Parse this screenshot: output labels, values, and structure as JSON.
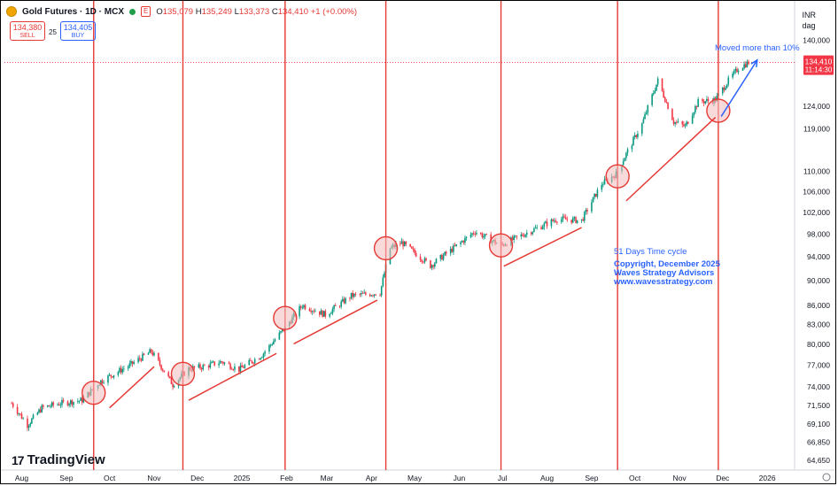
{
  "header": {
    "symbol": "Gold Futures · 1D · MCX",
    "badge": "E",
    "ohlc": {
      "o_label": "O",
      "o": "135,079",
      "h_label": "H",
      "h": "135,249",
      "l_label": "L",
      "l": "133,373",
      "c_label": "C",
      "c": "134,410",
      "change": "+1 (+0.00%)"
    },
    "sell": {
      "price": "134,380",
      "label": "SELL"
    },
    "buy": {
      "price": "134,405",
      "label": "BUY"
    },
    "spread": "25",
    "currency": "INR",
    "unit": "dag"
  },
  "branding": {
    "logo_text": "TradingView"
  },
  "annotations": {
    "moved": "Moved more than 10%",
    "cycle": "51 Days Time cycle",
    "copyright": "Copyright, December 2025",
    "company": "Waves Strategy Advisors",
    "website": "www.wavesstrategy.com"
  },
  "colors": {
    "up": "#089981",
    "down": "#f23645",
    "cycle_line": "#e53935",
    "arrow": "#2962ff",
    "circle_fill": "#f4bcbc"
  },
  "chart_data": {
    "type": "candlestick",
    "ylim": [
      63500,
      141500
    ],
    "y_scale": "log",
    "y_ticks": [
      "140,000",
      "124,000",
      "119,000",
      "110,000",
      "106,000",
      "102,000",
      "98,000",
      "94,000",
      "90,000",
      "86,000",
      "83,000",
      "80,000",
      "77,000",
      "74,000",
      "71,500",
      "69,100",
      "66,850",
      "64,650"
    ],
    "x_ticks": [
      "Aug",
      "Sep",
      "Oct",
      "Nov",
      "Dec",
      "2025",
      "Feb",
      "Mar",
      "Apr",
      "May",
      "Jun",
      "Jul",
      "Aug",
      "Sep",
      "Oct",
      "Nov",
      "Dec",
      "2026"
    ],
    "x_range": [
      "2024-07-20",
      "2026-01-20"
    ],
    "last_price": "134,410",
    "countdown": "11:14:30",
    "price_trend": [
      [
        "2024-07-25",
        71800
      ],
      [
        "2024-08-05",
        69000
      ],
      [
        "2024-08-15",
        71200
      ],
      [
        "2024-08-28",
        71800
      ],
      [
        "2024-09-12",
        72200
      ],
      [
        "2024-09-25",
        74800
      ],
      [
        "2024-10-15",
        77000
      ],
      [
        "2024-10-30",
        79000
      ],
      [
        "2024-11-14",
        74300
      ],
      [
        "2024-11-25",
        76500
      ],
      [
        "2024-12-05",
        76800
      ],
      [
        "2024-12-18",
        77500
      ],
      [
        "2024-12-30",
        76400
      ],
      [
        "2025-01-15",
        78500
      ],
      [
        "2025-01-31",
        82500
      ],
      [
        "2025-02-12",
        86000
      ],
      [
        "2025-02-28",
        84500
      ],
      [
        "2025-03-18",
        87500
      ],
      [
        "2025-04-07",
        88000
      ],
      [
        "2025-04-14",
        95500
      ],
      [
        "2025-04-22",
        96500
      ],
      [
        "2025-05-12",
        92500
      ],
      [
        "2025-05-28",
        95500
      ],
      [
        "2025-06-12",
        98500
      ],
      [
        "2025-06-30",
        96000
      ],
      [
        "2025-07-20",
        98500
      ],
      [
        "2025-08-08",
        100800
      ],
      [
        "2025-08-25",
        100500
      ],
      [
        "2025-09-08",
        107500
      ],
      [
        "2025-09-18",
        109500
      ],
      [
        "2025-10-06",
        120000
      ],
      [
        "2025-10-17",
        130000
      ],
      [
        "2025-10-28",
        120500
      ],
      [
        "2025-11-05",
        119500
      ],
      [
        "2025-11-14",
        125000
      ],
      [
        "2025-11-26",
        125500
      ],
      [
        "2025-12-05",
        130000
      ],
      [
        "2025-12-12",
        133000
      ],
      [
        "2025-12-19",
        134410
      ]
    ],
    "cycle_dates": [
      "2024-09-20",
      "2024-11-21",
      "2025-01-31",
      "2025-04-11",
      "2025-06-30",
      "2025-09-19",
      "2025-11-28"
    ],
    "circles": [
      [
        "2024-09-20",
        73200
      ],
      [
        "2024-11-21",
        75800
      ],
      [
        "2025-01-31",
        84000
      ],
      [
        "2025-04-11",
        95500
      ],
      [
        "2025-06-30",
        96000
      ],
      [
        "2025-09-19",
        109000
      ],
      [
        "2025-11-28",
        123000
      ]
    ],
    "trend_lines": [
      [
        [
          "2024-10-01",
          71200
        ],
        [
          "2024-11-01",
          76800
        ]
      ],
      [
        [
          "2024-11-25",
          72200
        ],
        [
          "2025-01-25",
          78700
        ]
      ],
      [
        [
          "2025-02-06",
          80100
        ],
        [
          "2025-04-05",
          86800
        ]
      ],
      [
        [
          "2025-07-02",
          92400
        ],
        [
          "2025-08-25",
          99200
        ]
      ],
      [
        [
          "2025-09-25",
          104200
        ],
        [
          "2025-11-26",
          121500
        ]
      ]
    ],
    "arrow": [
      [
        "2025-11-30",
        121700
      ],
      [
        "2025-12-25",
        135000
      ]
    ]
  }
}
